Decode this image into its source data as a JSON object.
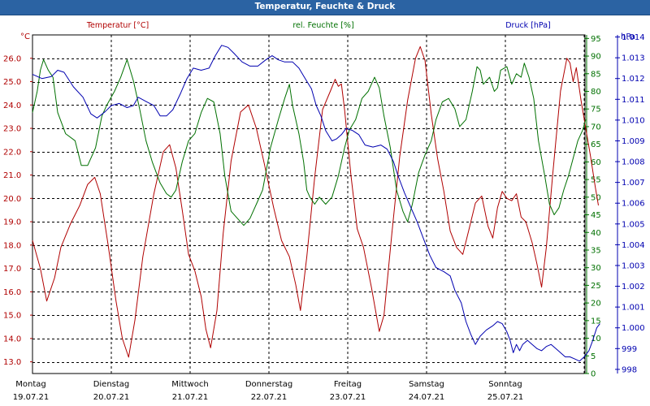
{
  "title": "Temperatur, Feuchte & Druck",
  "colors": {
    "temperature": "#b00000",
    "humidity": "#007000",
    "pressure": "#0000b0",
    "titlebar": "#2b63a3"
  },
  "chart_data": {
    "type": "line",
    "title": "Temperatur, Feuchte & Druck",
    "grid": true,
    "x": {
      "unit": "day",
      "range": [
        0,
        7
      ],
      "ticks": [
        {
          "day": "Montag",
          "date": "19.07.21"
        },
        {
          "day": "Dienstag",
          "date": "20.07.21"
        },
        {
          "day": "Mittwoch",
          "date": "21.07.21"
        },
        {
          "day": "Donnerstag",
          "date": "22.07.21"
        },
        {
          "day": "Freitag",
          "date": "23.07.21"
        },
        {
          "day": "Samstag",
          "date": "24.07.21"
        },
        {
          "day": "Sonntag",
          "date": "25.07.21"
        }
      ]
    },
    "axes": {
      "temperature": {
        "label": "Temperatur [°C]",
        "unit": "°C",
        "range": [
          12.5,
          27
        ],
        "ticks": [
          "13.0",
          "14.0",
          "15.0",
          "16.0",
          "17.0",
          "18.0",
          "19.0",
          "20.0",
          "21.0",
          "22.0",
          "23.0",
          "24.0",
          "25.0",
          "26.0"
        ]
      },
      "humidity": {
        "label": "rel. Feuchte [%]",
        "unit": "%",
        "range": [
          0,
          96
        ],
        "ticks": [
          "0",
          "5",
          "10",
          "15",
          "20",
          "25",
          "30",
          "35",
          "40",
          "45",
          "50",
          "55",
          "60",
          "65",
          "70",
          "75",
          "80",
          "85",
          "90",
          "95"
        ]
      },
      "pressure": {
        "label": "Druck [hPa]",
        "unit": "hPa",
        "range": [
          997.8,
          1014.1
        ],
        "ticks": [
          "998",
          "999",
          "1.000",
          "1.001",
          "1.002",
          "1.003",
          "1.004",
          "1.005",
          "1.006",
          "1.007",
          "1.008",
          "1.009",
          "1.010",
          "1.011",
          "1.012",
          "1.013",
          "1.014"
        ]
      }
    },
    "series": [
      {
        "name": "Temperatur [°C]",
        "axis": "temperature",
        "points": [
          [
            0.0,
            18.2
          ],
          [
            0.1,
            17.0
          ],
          [
            0.18,
            15.6
          ],
          [
            0.28,
            16.6
          ],
          [
            0.36,
            17.9
          ],
          [
            0.48,
            18.9
          ],
          [
            0.6,
            19.7
          ],
          [
            0.7,
            20.6
          ],
          [
            0.79,
            20.9
          ],
          [
            0.86,
            20.2
          ],
          [
            0.96,
            18.0
          ],
          [
            1.06,
            15.6
          ],
          [
            1.14,
            14.0
          ],
          [
            1.22,
            13.2
          ],
          [
            1.3,
            14.8
          ],
          [
            1.4,
            17.5
          ],
          [
            1.54,
            20.2
          ],
          [
            1.66,
            22.0
          ],
          [
            1.74,
            22.3
          ],
          [
            1.82,
            21.3
          ],
          [
            1.9,
            19.5
          ],
          [
            1.98,
            17.6
          ],
          [
            2.06,
            16.9
          ],
          [
            2.14,
            15.8
          ],
          [
            2.2,
            14.4
          ],
          [
            2.26,
            13.6
          ],
          [
            2.34,
            15.2
          ],
          [
            2.42,
            18.5
          ],
          [
            2.52,
            21.6
          ],
          [
            2.64,
            23.7
          ],
          [
            2.74,
            24.0
          ],
          [
            2.84,
            23.0
          ],
          [
            2.94,
            21.5
          ],
          [
            3.06,
            19.6
          ],
          [
            3.16,
            18.2
          ],
          [
            3.26,
            17.5
          ],
          [
            3.34,
            16.3
          ],
          [
            3.4,
            15.2
          ],
          [
            3.48,
            17.5
          ],
          [
            3.58,
            20.9
          ],
          [
            3.68,
            23.8
          ],
          [
            3.78,
            24.6
          ],
          [
            3.84,
            25.1
          ],
          [
            3.88,
            24.8
          ],
          [
            3.92,
            24.9
          ],
          [
            3.96,
            23.8
          ],
          [
            4.04,
            21.0
          ],
          [
            4.12,
            18.7
          ],
          [
            4.2,
            17.9
          ],
          [
            4.3,
            16.2
          ],
          [
            4.4,
            14.3
          ],
          [
            4.46,
            15.0
          ],
          [
            4.56,
            18.5
          ],
          [
            4.66,
            21.8
          ],
          [
            4.76,
            24.2
          ],
          [
            4.86,
            26.0
          ],
          [
            4.92,
            26.5
          ],
          [
            4.98,
            25.9
          ],
          [
            5.06,
            23.6
          ],
          [
            5.14,
            21.7
          ],
          [
            5.22,
            20.3
          ],
          [
            5.3,
            18.6
          ],
          [
            5.38,
            17.9
          ],
          [
            5.46,
            17.6
          ],
          [
            5.54,
            18.7
          ],
          [
            5.62,
            19.8
          ],
          [
            5.7,
            20.1
          ],
          [
            5.78,
            18.8
          ],
          [
            5.84,
            18.3
          ],
          [
            5.9,
            19.6
          ],
          [
            5.96,
            20.3
          ],
          [
            6.02,
            20.0
          ],
          [
            6.08,
            19.9
          ],
          [
            6.14,
            20.2
          ],
          [
            6.2,
            19.2
          ],
          [
            6.26,
            19.0
          ],
          [
            6.34,
            18.1
          ],
          [
            6.4,
            17.2
          ],
          [
            6.46,
            16.2
          ],
          [
            6.52,
            17.9
          ],
          [
            6.6,
            21.0
          ],
          [
            6.7,
            24.6
          ],
          [
            6.78,
            26.0
          ],
          [
            6.82,
            25.8
          ],
          [
            6.86,
            25.0
          ],
          [
            6.9,
            25.6
          ],
          [
            6.96,
            24.2
          ],
          [
            7.02,
            23.0
          ],
          [
            7.08,
            21.8
          ],
          [
            7.14,
            20.5
          ],
          [
            7.18,
            19.7
          ]
        ]
      },
      {
        "name": "rel. Feuchte [%]",
        "axis": "humidity",
        "points": [
          [
            0.0,
            74
          ],
          [
            0.06,
            80
          ],
          [
            0.1,
            86
          ],
          [
            0.14,
            89
          ],
          [
            0.2,
            86
          ],
          [
            0.26,
            84
          ],
          [
            0.32,
            74
          ],
          [
            0.42,
            68
          ],
          [
            0.54,
            66
          ],
          [
            0.62,
            59
          ],
          [
            0.7,
            59
          ],
          [
            0.8,
            64
          ],
          [
            0.88,
            73
          ],
          [
            0.94,
            76
          ],
          [
            1.04,
            80
          ],
          [
            1.12,
            84
          ],
          [
            1.2,
            89
          ],
          [
            1.28,
            83
          ],
          [
            1.36,
            75
          ],
          [
            1.44,
            66
          ],
          [
            1.52,
            60
          ],
          [
            1.62,
            54
          ],
          [
            1.7,
            51
          ],
          [
            1.76,
            50
          ],
          [
            1.82,
            52
          ],
          [
            1.9,
            60
          ],
          [
            1.98,
            66
          ],
          [
            2.06,
            68
          ],
          [
            2.14,
            74
          ],
          [
            2.22,
            78
          ],
          [
            2.3,
            77
          ],
          [
            2.38,
            68
          ],
          [
            2.44,
            56
          ],
          [
            2.52,
            46
          ],
          [
            2.6,
            44
          ],
          [
            2.68,
            42
          ],
          [
            2.76,
            44
          ],
          [
            2.84,
            48
          ],
          [
            2.92,
            52
          ],
          [
            3.02,
            64
          ],
          [
            3.12,
            72
          ],
          [
            3.2,
            78
          ],
          [
            3.26,
            82
          ],
          [
            3.3,
            76
          ],
          [
            3.38,
            68
          ],
          [
            3.44,
            60
          ],
          [
            3.48,
            52
          ],
          [
            3.52,
            50
          ],
          [
            3.58,
            48
          ],
          [
            3.64,
            50
          ],
          [
            3.72,
            48
          ],
          [
            3.8,
            50
          ],
          [
            3.88,
            56
          ],
          [
            3.96,
            64
          ],
          [
            4.02,
            69
          ],
          [
            4.1,
            72
          ],
          [
            4.18,
            78
          ],
          [
            4.26,
            80
          ],
          [
            4.34,
            84
          ],
          [
            4.4,
            81
          ],
          [
            4.46,
            73
          ],
          [
            4.54,
            64
          ],
          [
            4.62,
            52
          ],
          [
            4.7,
            46
          ],
          [
            4.76,
            43
          ],
          [
            4.82,
            48
          ],
          [
            4.9,
            57
          ],
          [
            4.98,
            62
          ],
          [
            5.06,
            66
          ],
          [
            5.12,
            72
          ],
          [
            5.2,
            77
          ],
          [
            5.28,
            78
          ],
          [
            5.36,
            75
          ],
          [
            5.42,
            70
          ],
          [
            5.5,
            72
          ],
          [
            5.58,
            80
          ],
          [
            5.64,
            87
          ],
          [
            5.68,
            86
          ],
          [
            5.72,
            82
          ],
          [
            5.8,
            84
          ],
          [
            5.86,
            80
          ],
          [
            5.9,
            81
          ],
          [
            5.94,
            86
          ],
          [
            6.02,
            87
          ],
          [
            6.08,
            82
          ],
          [
            6.14,
            85
          ],
          [
            6.2,
            84
          ],
          [
            6.24,
            88
          ],
          [
            6.3,
            84
          ],
          [
            6.36,
            78
          ],
          [
            6.42,
            66
          ],
          [
            6.5,
            56
          ],
          [
            6.56,
            48
          ],
          [
            6.62,
            45
          ],
          [
            6.68,
            47
          ],
          [
            6.74,
            52
          ],
          [
            6.8,
            56
          ],
          [
            6.86,
            61
          ],
          [
            6.92,
            66
          ],
          [
            6.98,
            69
          ],
          [
            7.02,
            72
          ]
        ]
      },
      {
        "name": "Druck [hPa]",
        "axis": "pressure",
        "points": [
          [
            0.0,
            1012.2
          ],
          [
            0.12,
            1012.0
          ],
          [
            0.24,
            1012.1
          ],
          [
            0.32,
            1012.4
          ],
          [
            0.4,
            1012.3
          ],
          [
            0.52,
            1011.6
          ],
          [
            0.64,
            1011.1
          ],
          [
            0.74,
            1010.3
          ],
          [
            0.82,
            1010.1
          ],
          [
            0.92,
            1010.4
          ],
          [
            1.0,
            1010.7
          ],
          [
            1.1,
            1010.8
          ],
          [
            1.2,
            1010.6
          ],
          [
            1.28,
            1010.7
          ],
          [
            1.34,
            1011.1
          ],
          [
            1.44,
            1010.9
          ],
          [
            1.54,
            1010.7
          ],
          [
            1.62,
            1010.2
          ],
          [
            1.7,
            1010.2
          ],
          [
            1.78,
            1010.5
          ],
          [
            1.88,
            1011.3
          ],
          [
            1.96,
            1012.0
          ],
          [
            2.04,
            1012.5
          ],
          [
            2.14,
            1012.4
          ],
          [
            2.24,
            1012.5
          ],
          [
            2.32,
            1013.1
          ],
          [
            2.4,
            1013.6
          ],
          [
            2.48,
            1013.5
          ],
          [
            2.56,
            1013.2
          ],
          [
            2.66,
            1012.8
          ],
          [
            2.76,
            1012.6
          ],
          [
            2.86,
            1012.6
          ],
          [
            2.96,
            1012.9
          ],
          [
            3.04,
            1013.1
          ],
          [
            3.12,
            1012.9
          ],
          [
            3.2,
            1012.8
          ],
          [
            3.3,
            1012.8
          ],
          [
            3.38,
            1012.5
          ],
          [
            3.46,
            1012.0
          ],
          [
            3.54,
            1011.5
          ],
          [
            3.6,
            1010.7
          ],
          [
            3.66,
            1010.2
          ],
          [
            3.72,
            1009.5
          ],
          [
            3.8,
            1009.0
          ],
          [
            3.86,
            1009.1
          ],
          [
            3.92,
            1009.3
          ],
          [
            3.98,
            1009.6
          ],
          [
            4.06,
            1009.5
          ],
          [
            4.14,
            1009.3
          ],
          [
            4.22,
            1008.8
          ],
          [
            4.32,
            1008.7
          ],
          [
            4.42,
            1008.8
          ],
          [
            4.5,
            1008.6
          ],
          [
            4.58,
            1008.0
          ],
          [
            4.64,
            1007.3
          ],
          [
            4.72,
            1006.5
          ],
          [
            4.8,
            1005.8
          ],
          [
            4.88,
            1005.1
          ],
          [
            4.96,
            1004.3
          ],
          [
            5.04,
            1003.5
          ],
          [
            5.12,
            1002.9
          ],
          [
            5.22,
            1002.7
          ],
          [
            5.3,
            1002.5
          ],
          [
            5.36,
            1001.8
          ],
          [
            5.44,
            1001.2
          ],
          [
            5.5,
            1000.3
          ],
          [
            5.56,
            999.7
          ],
          [
            5.62,
            999.2
          ],
          [
            5.68,
            999.6
          ],
          [
            5.76,
            999.9
          ],
          [
            5.84,
            1000.1
          ],
          [
            5.9,
            1000.3
          ],
          [
            5.96,
            1000.2
          ],
          [
            6.02,
            999.8
          ],
          [
            6.06,
            999.4
          ],
          [
            6.1,
            998.8
          ],
          [
            6.14,
            999.2
          ],
          [
            6.18,
            998.9
          ],
          [
            6.22,
            999.2
          ],
          [
            6.28,
            999.4
          ],
          [
            6.34,
            999.2
          ],
          [
            6.4,
            999.0
          ],
          [
            6.46,
            998.9
          ],
          [
            6.52,
            999.1
          ],
          [
            6.58,
            999.2
          ],
          [
            6.64,
            999.0
          ],
          [
            6.7,
            998.8
          ],
          [
            6.76,
            998.6
          ],
          [
            6.82,
            998.6
          ],
          [
            6.88,
            998.5
          ],
          [
            6.94,
            998.4
          ],
          [
            7.0,
            998.6
          ],
          [
            7.06,
            998.9
          ],
          [
            7.1,
            999.3
          ],
          [
            7.16,
            1000.0
          ],
          [
            7.2,
            1000.2
          ]
        ]
      }
    ]
  }
}
